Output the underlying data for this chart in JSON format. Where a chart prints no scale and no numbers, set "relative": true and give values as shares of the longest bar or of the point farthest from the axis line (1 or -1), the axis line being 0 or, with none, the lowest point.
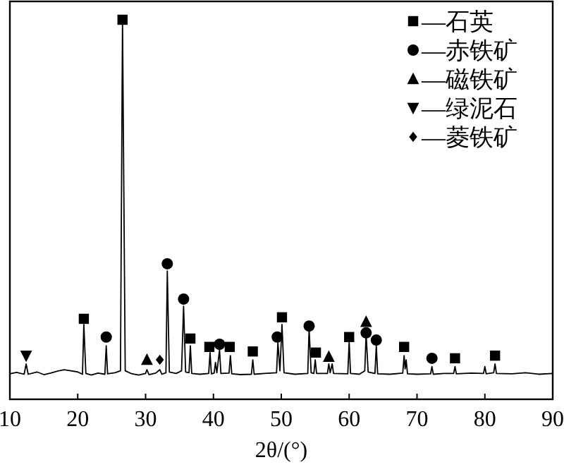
{
  "chart_data": {
    "type": "line",
    "relative": true,
    "xlabel": "2θ/(°)",
    "xlim": [
      10,
      90
    ],
    "xticks": [
      10,
      20,
      30,
      40,
      50,
      60,
      70,
      80,
      90
    ],
    "legend": "top right",
    "grid": false,
    "series": [
      {
        "type": "line",
        "color": "#000000",
        "marker": "none",
        "x": [
          10,
          11,
          12.1,
          12.4,
          12.7,
          14,
          15,
          16,
          17,
          18,
          19,
          20,
          20.7,
          20.9,
          21.2,
          22,
          23,
          24,
          24.2,
          24.4,
          25.5,
          26.3,
          26.6,
          27.0,
          28,
          29,
          30,
          30.2,
          30.5,
          31.5,
          32.1,
          32.4,
          33.0,
          33.2,
          33.5,
          34.5,
          35.3,
          35.6,
          35.9,
          36.4,
          36.6,
          36.8,
          38,
          39.3,
          39.5,
          39.7,
          40.1,
          40.3,
          40.5,
          40.9,
          41.1,
          42.3,
          42.5,
          42.7,
          44,
          45.6,
          45.8,
          46.0,
          47.5,
          49.3,
          49.5,
          49.8,
          50.1,
          50.4,
          52,
          53.9,
          54.1,
          54.4,
          54.8,
          55.0,
          55.2,
          56.8,
          57.0,
          57.2,
          57.5,
          57.7,
          59.8,
          60.0,
          60.2,
          61.5,
          62.3,
          62.5,
          62.8,
          63.8,
          64.0,
          64.2,
          66,
          67.9,
          68.1,
          68.25,
          68.4,
          68.6,
          70,
          72.0,
          72.2,
          72.4,
          74,
          75.4,
          75.6,
          75.8,
          78,
          79.8,
          80.0,
          80.2,
          81.3,
          81.5,
          81.7,
          84,
          86,
          88,
          90
        ],
        "values": [
          0.067,
          0.071,
          0.066,
          0.093,
          0.066,
          0.072,
          0.065,
          0.069,
          0.074,
          0.078,
          0.075,
          0.072,
          0.066,
          0.197,
          0.068,
          0.064,
          0.069,
          0.066,
          0.141,
          0.067,
          0.07,
          0.075,
          1,
          0.075,
          0.067,
          0.064,
          0.068,
          0.078,
          0.065,
          0.069,
          0.078,
          0.066,
          0.07,
          0.338,
          0.072,
          0.068,
          0.075,
          0.245,
          0.072,
          0.07,
          0.141,
          0.068,
          0.066,
          0.068,
          0.123,
          0.067,
          0.069,
          0.097,
          0.07,
          0.13,
          0.068,
          0.069,
          0.115,
          0.067,
          0.065,
          0.066,
          0.104,
          0.066,
          0.068,
          0.07,
          0.149,
          0.075,
          0.197,
          0.07,
          0.066,
          0.068,
          0.186,
          0.07,
          0.068,
          0.104,
          0.068,
          0.068,
          0.093,
          0.07,
          0.093,
          0.068,
          0.067,
          0.152,
          0.068,
          0.066,
          0.075,
          0.171,
          0.072,
          0.068,
          0.141,
          0.067,
          0.066,
          0.069,
          0.115,
          0.08,
          0.104,
          0.067,
          0.066,
          0.067,
          0.086,
          0.066,
          0.068,
          0.068,
          0.086,
          0.067,
          0.069,
          0.068,
          0.086,
          0.067,
          0.07,
          0.093,
          0.068,
          0.067,
          0.07,
          0.066,
          0.068
        ]
      },
      {
        "type": "scatter",
        "name": "—石英",
        "color": "#000000",
        "marker": "square",
        "x": [
          20.9,
          26.6,
          36.6,
          39.4,
          42.4,
          45.8,
          50.1,
          55.1,
          60.0,
          68.1,
          75.6,
          81.5
        ],
        "values": [
          0.212,
          1,
          0.16,
          0.138,
          0.138,
          0.126,
          0.216,
          0.123,
          0.164,
          0.138,
          0.108,
          0.115
        ]
      },
      {
        "type": "scatter",
        "name": "—赤铁矿",
        "color": "#000000",
        "marker": "circle",
        "x": [
          24.2,
          33.2,
          35.6,
          40.9,
          49.4,
          54.1,
          62.5,
          64.0,
          72.2
        ],
        "values": [
          0.164,
          0.357,
          0.264,
          0.145,
          0.164,
          0.193,
          0.175,
          0.156,
          0.108
        ]
      },
      {
        "type": "scatter",
        "name": "—磁铁矿",
        "color": "#000000",
        "marker": "triangle",
        "x": [
          30.2,
          57.0,
          62.5
        ],
        "values": [
          0.104,
          0.112,
          0.204
        ]
      },
      {
        "type": "scatter",
        "name": "—绿泥石",
        "color": "#000000",
        "marker": "triangle-down",
        "x": [
          12.4
        ],
        "values": [
          0.115
        ]
      },
      {
        "type": "scatter",
        "name": "—菱铁矿",
        "color": "#000000",
        "marker": "diamond",
        "x": [
          32.1
        ],
        "values": [
          0.104
        ]
      }
    ]
  }
}
